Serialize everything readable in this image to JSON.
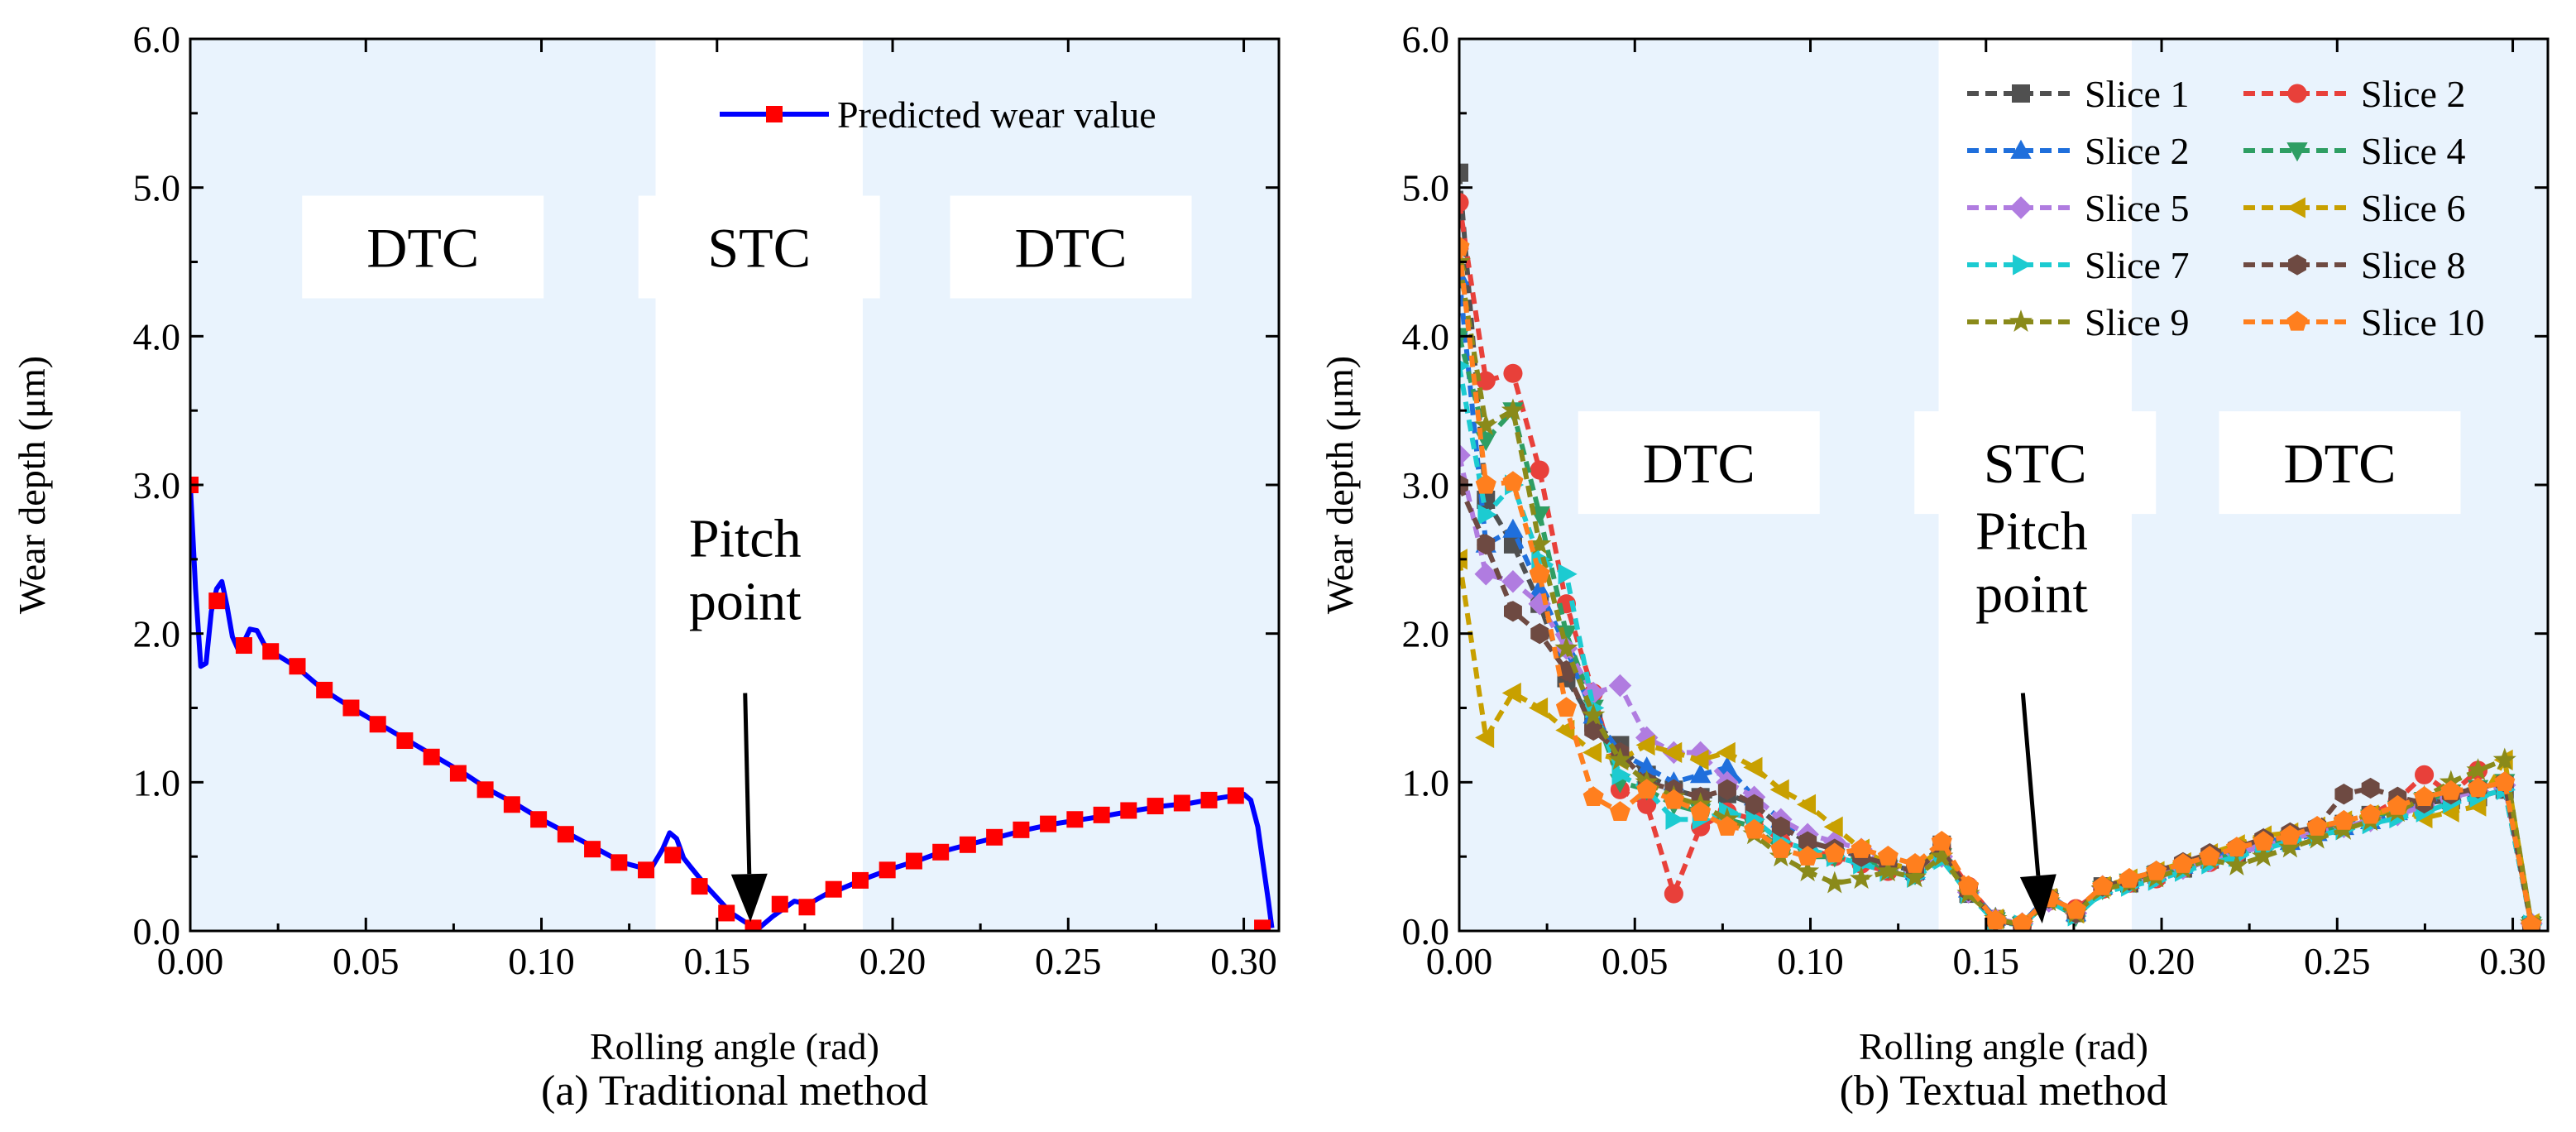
{
  "chart_data": [
    {
      "type": "line",
      "panel": "a",
      "caption": "(a) Traditional method",
      "xlabel": "Rolling angle (rad)",
      "ylabel": "Wear depth (μm)",
      "xlim": [
        0,
        0.31
      ],
      "ylim": [
        0,
        6
      ],
      "xticks": [
        0.0,
        0.05,
        0.1,
        0.15,
        0.2,
        0.25,
        0.3
      ],
      "xtick_labels": [
        "0.00",
        "0.05",
        "0.10",
        "0.15",
        "0.20",
        "0.25",
        "0.30"
      ],
      "yticks": [
        0,
        1,
        2,
        3,
        4,
        5,
        6
      ],
      "ytick_labels": [
        "0.0",
        "1.0",
        "2.0",
        "3.0",
        "4.0",
        "5.0",
        "6.0"
      ],
      "regions": [
        {
          "label": "DTC",
          "x0": 0.0,
          "x1": 0.1325,
          "shaded": true
        },
        {
          "label": "STC",
          "x0": 0.1325,
          "x1": 0.1915,
          "shaded": false
        },
        {
          "label": "DTC",
          "x0": 0.1915,
          "x1": 0.31,
          "shaded": true
        }
      ],
      "region_label_y": 4.6,
      "annotation": {
        "text_lines": [
          "Pitch",
          "point"
        ],
        "text_x": 0.158,
        "text_y": 2.05,
        "arrow_from": [
          0.158,
          1.6
        ],
        "arrow_to": [
          0.1595,
          0.06
        ]
      },
      "series": [
        {
          "name": "Predicted wear value",
          "color": "#0000ff",
          "marker_color": "#ff0000",
          "marker": "square",
          "line_x": [
            0,
            0.0015,
            0.003,
            0.0045,
            0.006,
            0.0075,
            0.009,
            0.0105,
            0.012,
            0.0135,
            0.015,
            0.017,
            0.019,
            0.021,
            0.023,
            0.03,
            0.038,
            0.046,
            0.054,
            0.062,
            0.07,
            0.078,
            0.085,
            0.093,
            0.1,
            0.108,
            0.116,
            0.123,
            0.131,
            0.1345,
            0.1365,
            0.1385,
            0.1405,
            0.1425,
            0.147,
            0.154,
            0.16,
            0.162,
            0.166,
            0.172,
            0.176,
            0.182,
            0.185,
            0.192,
            0.2,
            0.208,
            0.215,
            0.223,
            0.23,
            0.238,
            0.246,
            0.254,
            0.262,
            0.269,
            0.277,
            0.285,
            0.292,
            0.3,
            0.302,
            0.304,
            0.3055,
            0.307,
            0.308
          ],
          "line_y": [
            3.0,
            2.3,
            1.78,
            1.8,
            2.15,
            2.3,
            2.35,
            2.18,
            1.98,
            1.9,
            1.93,
            2.03,
            2.02,
            1.93,
            1.88,
            1.78,
            1.62,
            1.5,
            1.39,
            1.28,
            1.17,
            1.06,
            0.95,
            0.85,
            0.75,
            0.65,
            0.55,
            0.46,
            0.41,
            0.55,
            0.66,
            0.62,
            0.49,
            0.43,
            0.3,
            0.12,
            0.03,
            0.02,
            0.1,
            0.2,
            0.18,
            0.26,
            0.28,
            0.35,
            0.42,
            0.48,
            0.54,
            0.59,
            0.63,
            0.68,
            0.72,
            0.75,
            0.78,
            0.81,
            0.84,
            0.86,
            0.89,
            0.92,
            0.88,
            0.7,
            0.45,
            0.2,
            0.02
          ],
          "marker_x": [
            0.0,
            0.0076,
            0.0153,
            0.0229,
            0.0305,
            0.0382,
            0.0458,
            0.0534,
            0.0611,
            0.0687,
            0.0763,
            0.084,
            0.0916,
            0.0992,
            0.1069,
            0.1145,
            0.1221,
            0.1298,
            0.1374,
            0.145,
            0.1527,
            0.1603,
            0.1679,
            0.1756,
            0.1832,
            0.1908,
            0.1985,
            0.2061,
            0.2137,
            0.2214,
            0.229,
            0.2366,
            0.2443,
            0.2519,
            0.2595,
            0.2672,
            0.2748,
            0.2824,
            0.2901,
            0.2977,
            0.3053
          ],
          "marker_y": [
            3.0,
            2.22,
            1.92,
            1.88,
            1.78,
            1.62,
            1.5,
            1.39,
            1.28,
            1.17,
            1.06,
            0.95,
            0.85,
            0.75,
            0.65,
            0.55,
            0.46,
            0.41,
            0.51,
            0.3,
            0.12,
            0.02,
            0.18,
            0.16,
            0.28,
            0.34,
            0.41,
            0.47,
            0.53,
            0.58,
            0.63,
            0.68,
            0.72,
            0.75,
            0.78,
            0.81,
            0.84,
            0.86,
            0.88,
            0.91,
            0.02
          ]
        }
      ],
      "legend": {
        "position": "top-right",
        "entries": [
          "Predicted wear value"
        ]
      }
    },
    {
      "type": "line",
      "panel": "b",
      "caption": "(b) Textual method",
      "xlabel": "Rolling angle (rad)",
      "ylabel": "Wear depth (μm)",
      "xlim": [
        0,
        0.31
      ],
      "ylim": [
        0,
        6
      ],
      "xticks": [
        0.0,
        0.05,
        0.1,
        0.15,
        0.2,
        0.25,
        0.3
      ],
      "xtick_labels": [
        "0.00",
        "0.05",
        "0.10",
        "0.15",
        "0.20",
        "0.25",
        "0.30"
      ],
      "yticks": [
        0,
        1,
        2,
        3,
        4,
        5,
        6
      ],
      "ytick_labels": [
        "0.0",
        "1.0",
        "2.0",
        "3.0",
        "4.0",
        "5.0",
        "6.0"
      ],
      "regions": [
        {
          "label": "DTC",
          "x0": 0.0,
          "x1": 0.1365,
          "shaded": true
        },
        {
          "label": "STC",
          "x0": 0.1365,
          "x1": 0.1915,
          "shaded": false
        },
        {
          "label": "DTC",
          "x0": 0.1915,
          "x1": 0.31,
          "shaded": true
        }
      ],
      "region_label_y": 3.15,
      "annotation": {
        "text_lines": [
          "Pitch",
          "point"
        ],
        "text_x": 0.163,
        "text_y": 2.1,
        "arrow_from": [
          0.1605,
          1.6
        ],
        "arrow_to": [
          0.166,
          0.05
        ]
      },
      "x": [
        0.0,
        0.0076,
        0.0153,
        0.0229,
        0.0305,
        0.0382,
        0.0458,
        0.0534,
        0.0611,
        0.0687,
        0.0763,
        0.084,
        0.0916,
        0.0992,
        0.1069,
        0.1145,
        0.1221,
        0.1298,
        0.1374,
        0.145,
        0.1527,
        0.1603,
        0.1679,
        0.1756,
        0.1832,
        0.1908,
        0.1985,
        0.2061,
        0.2137,
        0.2214,
        0.229,
        0.2366,
        0.2443,
        0.2519,
        0.2595,
        0.2672,
        0.2748,
        0.2824,
        0.2901,
        0.2977,
        0.3053
      ],
      "series": [
        {
          "name": "Slice 1",
          "color": "#505050",
          "marker": "square",
          "dash": "14,8",
          "values": [
            5.1,
            2.9,
            2.6,
            2.2,
            1.7,
            1.4,
            1.25,
            1.05,
            0.95,
            0.9,
            0.92,
            0.85,
            0.7,
            0.6,
            0.55,
            0.5,
            0.45,
            0.4,
            0.58,
            0.25,
            0.08,
            0.04,
            0.22,
            0.12,
            0.3,
            0.32,
            0.38,
            0.42,
            0.48,
            0.52,
            0.58,
            0.62,
            0.68,
            0.72,
            0.78,
            0.82,
            0.86,
            0.88,
            0.9,
            0.95,
            0.04
          ]
        },
        {
          "name": "Slice 2",
          "color": "#e8403a",
          "marker": "circle",
          "dash": "14,8",
          "values": [
            4.9,
            3.7,
            3.75,
            3.1,
            2.2,
            1.6,
            0.95,
            0.85,
            0.25,
            0.7,
            0.8,
            0.75,
            0.6,
            0.55,
            0.5,
            0.45,
            0.4,
            0.38,
            0.55,
            0.3,
            0.08,
            0.03,
            0.2,
            0.15,
            0.28,
            0.32,
            0.35,
            0.42,
            0.46,
            0.52,
            0.58,
            0.64,
            0.68,
            0.72,
            0.78,
            0.88,
            1.05,
            0.92,
            1.08,
            0.98,
            0.04
          ]
        },
        {
          "name": "Slice 2",
          "color": "#1f6fdc",
          "marker": "triangle-up",
          "dash": "14,8",
          "values": [
            4.4,
            2.6,
            2.7,
            2.3,
            1.9,
            1.45,
            1.2,
            1.1,
            1.0,
            1.05,
            1.1,
            0.9,
            0.75,
            0.6,
            0.55,
            0.5,
            0.45,
            0.4,
            0.52,
            0.28,
            0.09,
            0.05,
            0.24,
            0.12,
            0.3,
            0.34,
            0.4,
            0.44,
            0.5,
            0.55,
            0.62,
            0.6,
            0.66,
            0.7,
            0.74,
            0.8,
            0.86,
            0.92,
            0.96,
            1.0,
            0.05
          ]
        },
        {
          "name": "Slice 4",
          "color": "#2e9e63",
          "marker": "triangle-down",
          "dash": "14,8",
          "values": [
            4.0,
            3.3,
            3.5,
            2.8,
            2.0,
            1.5,
            1.0,
            0.95,
            0.85,
            0.8,
            0.75,
            0.7,
            0.55,
            0.5,
            0.5,
            0.48,
            0.42,
            0.38,
            0.5,
            0.26,
            0.07,
            0.04,
            0.2,
            0.1,
            0.28,
            0.33,
            0.38,
            0.42,
            0.47,
            0.52,
            0.56,
            0.62,
            0.66,
            0.7,
            0.76,
            0.82,
            0.88,
            0.93,
            0.96,
            1.0,
            0.04
          ]
        },
        {
          "name": "Slice 5",
          "color": "#b07ce0",
          "marker": "diamond",
          "dash": "14,8",
          "values": [
            3.2,
            2.4,
            2.35,
            2.2,
            1.9,
            1.6,
            1.65,
            1.3,
            1.2,
            1.2,
            1.0,
            0.9,
            0.75,
            0.65,
            0.6,
            0.55,
            0.45,
            0.4,
            0.5,
            0.26,
            0.08,
            0.05,
            0.2,
            0.12,
            0.3,
            0.33,
            0.37,
            0.42,
            0.47,
            0.52,
            0.57,
            0.62,
            0.66,
            0.7,
            0.74,
            0.78,
            0.84,
            0.9,
            0.94,
            0.98,
            0.05
          ]
        },
        {
          "name": "Slice 6",
          "color": "#c8a000",
          "marker": "triangle-left",
          "dash": "14,8",
          "values": [
            2.5,
            1.3,
            1.6,
            1.5,
            1.35,
            1.2,
            1.15,
            1.25,
            1.2,
            1.15,
            1.2,
            1.1,
            0.95,
            0.85,
            0.7,
            0.55,
            0.45,
            0.42,
            0.55,
            0.27,
            0.08,
            0.05,
            0.22,
            0.12,
            0.3,
            0.35,
            0.4,
            0.46,
            0.52,
            0.58,
            0.64,
            0.66,
            0.7,
            0.74,
            0.78,
            0.82,
            0.76,
            0.8,
            0.84,
            1.15,
            0.05
          ]
        },
        {
          "name": "Slice 7",
          "color": "#1ccbd1",
          "marker": "triangle-right",
          "dash": "14,8",
          "values": [
            3.8,
            2.8,
            3.0,
            2.5,
            2.4,
            1.5,
            1.05,
            0.95,
            0.75,
            0.75,
            0.8,
            0.75,
            0.6,
            0.55,
            0.5,
            0.45,
            0.4,
            0.36,
            0.48,
            0.25,
            0.06,
            0.04,
            0.2,
            0.1,
            0.26,
            0.3,
            0.34,
            0.4,
            0.45,
            0.5,
            0.55,
            0.6,
            0.64,
            0.68,
            0.72,
            0.76,
            0.8,
            0.86,
            0.9,
            0.95,
            0.04
          ]
        },
        {
          "name": "Slice 8",
          "color": "#6e4a42",
          "marker": "hexagon",
          "dash": "14,8",
          "values": [
            3.0,
            2.6,
            2.15,
            2.0,
            1.75,
            1.35,
            1.2,
            1.0,
            0.95,
            0.9,
            0.95,
            0.85,
            0.7,
            0.6,
            0.55,
            0.5,
            0.45,
            0.4,
            0.55,
            0.27,
            0.07,
            0.04,
            0.22,
            0.12,
            0.3,
            0.34,
            0.4,
            0.46,
            0.52,
            0.56,
            0.62,
            0.66,
            0.7,
            0.92,
            0.96,
            0.9,
            0.86,
            0.92,
            0.96,
            1.0,
            0.04
          ]
        },
        {
          "name": "Slice 9",
          "color": "#8a8a1a",
          "marker": "star",
          "dash": "14,8",
          "values": [
            4.5,
            3.4,
            3.5,
            2.6,
            1.9,
            1.45,
            1.15,
            1.0,
            0.9,
            0.85,
            0.75,
            0.65,
            0.5,
            0.4,
            0.32,
            0.35,
            0.4,
            0.36,
            0.5,
            0.25,
            0.08,
            0.04,
            0.2,
            0.12,
            0.28,
            0.32,
            0.36,
            0.42,
            0.48,
            0.44,
            0.5,
            0.56,
            0.62,
            0.68,
            0.74,
            0.8,
            0.9,
            1.0,
            1.08,
            1.15,
            0.05
          ]
        },
        {
          "name": "Slice 10",
          "color": "#ff7f1e",
          "marker": "pentagon",
          "dash": "14,8",
          "values": [
            4.6,
            3.0,
            3.02,
            2.4,
            1.5,
            0.9,
            0.8,
            0.95,
            0.88,
            0.8,
            0.7,
            0.68,
            0.55,
            0.5,
            0.52,
            0.55,
            0.5,
            0.45,
            0.6,
            0.3,
            0.07,
            0.05,
            0.22,
            0.14,
            0.3,
            0.35,
            0.4,
            0.45,
            0.5,
            0.56,
            0.6,
            0.64,
            0.7,
            0.74,
            0.78,
            0.84,
            0.9,
            0.94,
            0.96,
            1.0,
            0.04
          ]
        }
      ],
      "legend": {
        "position": "top-right",
        "columns": 2,
        "entries": [
          "Slice 1",
          "Slice 2",
          "Slice 2",
          "Slice 4",
          "Slice 5",
          "Slice 6",
          "Slice 7",
          "Slice 8",
          "Slice 9",
          "Slice 10"
        ]
      }
    }
  ]
}
